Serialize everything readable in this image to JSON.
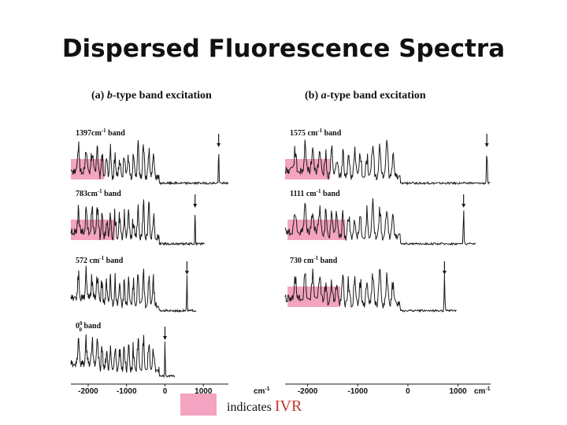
{
  "title": "Dispersed Fluorescence Spectra",
  "colors": {
    "highlight": "#f4a3c0",
    "trace": "#1a1a1a",
    "ivr_text": "#c0392b"
  },
  "legend": {
    "text": "indicates",
    "term": "IVR"
  },
  "chart_data": {
    "type": "line",
    "x_unit": "cm-1",
    "xlim": [
      -2450,
      1650
    ],
    "ticks": [
      -2000,
      -1000,
      0,
      1000
    ],
    "tick_labels": [
      "-2000",
      "-1000",
      "0",
      "1000"
    ],
    "panels": [
      {
        "id": "a",
        "label_prefix": "(a) ",
        "label_italic": "b",
        "label_suffix": "-type band excitation",
        "bands": [
          {
            "label": "1397cm",
            "sup": "-1",
            "label_tail": " band",
            "excitation": 1397,
            "ivr_range": [
              -2450,
              -1580
            ]
          },
          {
            "label": "783cm",
            "sup": "-1",
            "label_tail": "  band",
            "excitation": 783,
            "ivr_range": [
              -2450,
              -1300
            ]
          },
          {
            "label": "572 cm",
            "sup": "-1",
            "label_tail": " band",
            "excitation": 572,
            "ivr_range": null
          },
          {
            "label": "0",
            "sup": "0",
            "sub": "0",
            "label_tail": " band",
            "excitation": 0,
            "ivr_range": null
          }
        ]
      },
      {
        "id": "b",
        "label_prefix": "(b) ",
        "label_italic": "a",
        "label_suffix": "-type band excitation",
        "bands": [
          {
            "label": "1575 cm",
            "sup": "-1",
            "label_tail": " band",
            "excitation": 1575,
            "ivr_range": [
              -2450,
              -1550
            ]
          },
          {
            "label": "1111 cm",
            "sup": "-1",
            "label_tail": " band",
            "excitation": 1111,
            "ivr_range": [
              -2400,
              -1250
            ]
          },
          {
            "label": "730 cm",
            "sup": "-1",
            "label_tail": " band",
            "excitation": 730,
            "ivr_range": [
              -2400,
              -1350
            ]
          }
        ]
      }
    ]
  }
}
